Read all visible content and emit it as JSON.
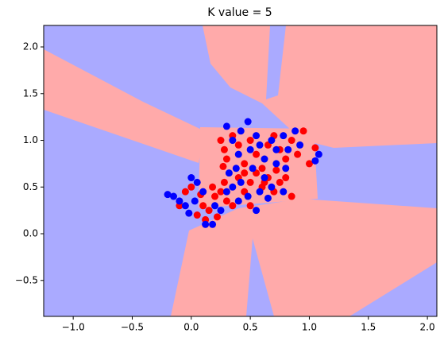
{
  "chart_data": {
    "type": "scatter",
    "title": "K value = 5",
    "xlim": [
      -1.25,
      2.08
    ],
    "ylim": [
      -0.885,
      2.23
    ],
    "xticks": [
      {
        "value": -1.0,
        "label": "−1.0"
      },
      {
        "value": -0.5,
        "label": "−0.5"
      },
      {
        "value": 0.0,
        "label": "0.0"
      },
      {
        "value": 0.5,
        "label": "0.5"
      },
      {
        "value": 1.0,
        "label": "1.0"
      },
      {
        "value": 1.5,
        "label": "1.5"
      },
      {
        "value": 2.0,
        "label": "2.0"
      }
    ],
    "yticks": [
      {
        "value": -0.5,
        "label": "−0.5"
      },
      {
        "value": 0.0,
        "label": "0.0"
      },
      {
        "value": 0.5,
        "label": "0.5"
      },
      {
        "value": 1.0,
        "label": "1.0"
      },
      {
        "value": 1.5,
        "label": "1.5"
      },
      {
        "value": 2.0,
        "label": "2.0"
      }
    ],
    "series": [
      {
        "color": "#ff0000",
        "x": [
          -0.05,
          0.0,
          0.05,
          0.1,
          0.15,
          0.2,
          0.25,
          0.3,
          0.35,
          0.12,
          -0.1,
          0.08,
          0.22,
          0.28,
          0.18,
          0.25,
          0.28,
          0.3,
          0.35,
          0.4,
          0.45,
          0.5,
          0.55,
          0.6,
          0.65,
          0.7,
          0.75,
          0.8,
          0.85,
          0.9,
          0.95,
          1.0,
          1.05,
          0.4,
          0.45,
          0.5,
          0.55,
          0.6,
          0.65,
          0.7,
          0.75,
          0.8,
          0.85,
          0.5,
          0.45,
          0.27,
          0.62,
          0.72
        ],
        "y": [
          0.45,
          0.5,
          0.2,
          0.3,
          0.25,
          0.4,
          0.45,
          0.35,
          0.3,
          0.15,
          0.3,
          0.42,
          0.18,
          0.55,
          0.5,
          1.0,
          0.9,
          0.8,
          1.05,
          0.95,
          0.75,
          1.0,
          0.85,
          0.7,
          0.95,
          1.05,
          0.9,
          0.8,
          1.0,
          0.85,
          1.1,
          0.75,
          0.92,
          0.6,
          0.45,
          0.55,
          0.65,
          0.5,
          0.6,
          0.45,
          0.55,
          0.6,
          0.4,
          0.3,
          0.65,
          0.72,
          0.55,
          0.68
        ]
      },
      {
        "color": "#0000ff",
        "x": [
          -0.2,
          -0.15,
          -0.1,
          -0.05,
          -0.02,
          0.0,
          0.05,
          0.1,
          0.12,
          0.18,
          0.2,
          0.25,
          0.3,
          0.32,
          0.35,
          0.03,
          0.3,
          0.35,
          0.4,
          0.42,
          0.48,
          0.5,
          0.55,
          0.58,
          0.62,
          0.68,
          0.72,
          0.78,
          0.82,
          0.88,
          0.92,
          1.05,
          1.08,
          0.38,
          0.42,
          0.48,
          0.52,
          0.58,
          0.62,
          0.68,
          0.72,
          0.78,
          0.8,
          0.55,
          0.4,
          0.65
        ],
        "y": [
          0.42,
          0.4,
          0.35,
          0.3,
          0.22,
          0.6,
          0.55,
          0.45,
          0.1,
          0.1,
          0.3,
          0.25,
          0.45,
          0.65,
          0.5,
          0.35,
          1.15,
          1.0,
          0.85,
          1.1,
          1.2,
          0.9,
          1.05,
          0.95,
          0.8,
          1.0,
          0.9,
          1.05,
          0.9,
          1.1,
          0.95,
          0.78,
          0.85,
          0.7,
          0.55,
          0.4,
          0.7,
          0.45,
          0.6,
          0.5,
          0.75,
          0.45,
          0.7,
          0.25,
          0.35,
          0.38
        ]
      }
    ]
  }
}
